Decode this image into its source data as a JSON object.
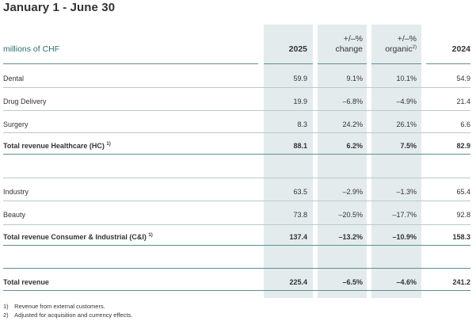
{
  "title": "January 1 - June 30",
  "header": {
    "unit_label": "millions of CHF",
    "col_2025": "2025",
    "change_line1": "+/–%",
    "change_line2": "change",
    "organic_line1": "+/–%",
    "organic_line2": "organic",
    "organic_sup": "2)",
    "col_2024": "2024"
  },
  "rows": [
    {
      "label": "Dental",
      "sup": "",
      "v2025": "59.9",
      "change": "9.1%",
      "organic": "10.1%",
      "v2024": "54.9"
    },
    {
      "label": "Drug Delivery",
      "sup": "",
      "v2025": "19.9",
      "change": "–6.8%",
      "organic": "–4.9%",
      "v2024": "21.4"
    },
    {
      "label": "Surgery",
      "sup": "",
      "v2025": "8.3",
      "change": "24.2%",
      "organic": "26.1%",
      "v2024": "6.6"
    },
    {
      "label": "Total revenue Healthcare (HC)",
      "sup": "1)",
      "v2025": "88.1",
      "change": "6.2%",
      "organic": "7.5%",
      "v2024": "82.9"
    },
    {
      "label": "Industry",
      "sup": "",
      "v2025": "63.5",
      "change": "–2.9%",
      "organic": "–1.3%",
      "v2024": "65.4"
    },
    {
      "label": "Beauty",
      "sup": "",
      "v2025": "73.8",
      "change": "–20.5%",
      "organic": "–17.7%",
      "v2024": "92.8"
    },
    {
      "label": "Total revenue Consumer & Industrial (C&I)",
      "sup": "1)",
      "v2025": "137.4",
      "change": "–13.2%",
      "organic": "–10.9%",
      "v2024": "158.3"
    },
    {
      "label": "Total revenue",
      "sup": "",
      "v2025": "225.4",
      "change": "–6.5%",
      "organic": "–4.6%",
      "v2024": "241.2"
    }
  ],
  "footnotes": [
    "1) Revenue from external customers.",
    "2) Adjusted for acquisition and currency effects."
  ],
  "colors": {
    "accent": "#2b6f74",
    "column_shade": "#e4ebec",
    "rule": "#5e8f93"
  }
}
